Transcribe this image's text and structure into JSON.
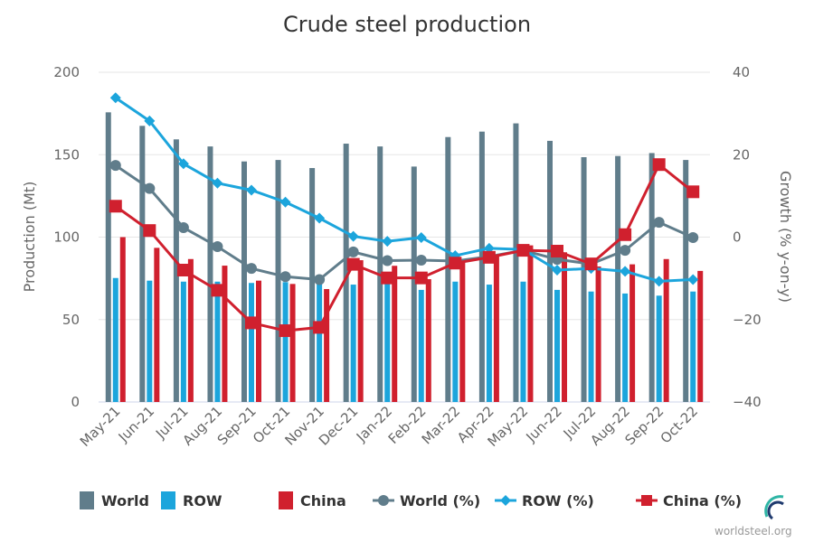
{
  "chart_data": {
    "type": "bar",
    "title": "Crude steel production",
    "xlabel": "",
    "ylabel": "Production (Mt)",
    "y2label": "Growth (% y-on-y)",
    "ylim": [
      0,
      200
    ],
    "y2lim": [
      -40,
      40
    ],
    "yticks": [
      "0",
      "50",
      "100",
      "150",
      "200"
    ],
    "y2ticks": [
      "−40",
      "−20",
      "0",
      "20",
      "40"
    ],
    "grid": true,
    "legend_position": "bottom",
    "categories": [
      "May-21",
      "Jun-21",
      "Jul-21",
      "Aug-21",
      "Sep-21",
      "Oct-21",
      "Nov-21",
      "Dec-21",
      "Jan-22",
      "Feb-22",
      "Mar-22",
      "Apr-22",
      "May-22",
      "Jun-22",
      "Jul-22",
      "Aug-22",
      "Sep-22",
      "Oct-22"
    ],
    "series": [
      {
        "name": "World",
        "type": "bar",
        "axis": "left",
        "color": "#607d8b",
        "values": [
          175.7,
          167.5,
          159.3,
          155.0,
          145.9,
          146.8,
          141.9,
          156.7,
          155.0,
          142.8,
          160.7,
          164.0,
          169.0,
          158.4,
          148.5,
          149.2,
          151.0,
          146.8
        ]
      },
      {
        "name": "ROW",
        "type": "bar",
        "axis": "left",
        "color": "#1ca5dc",
        "values": [
          75.2,
          73.6,
          73.0,
          73.0,
          72.2,
          72.7,
          74.0,
          71.2,
          72.6,
          68.0,
          73.0,
          71.2,
          73.0,
          68.0,
          67.0,
          65.8,
          64.5,
          67.0
        ]
      },
      {
        "name": "China",
        "type": "bar",
        "axis": "left",
        "color": "#d0202e",
        "values": [
          100.0,
          93.5,
          86.7,
          82.7,
          73.6,
          71.6,
          68.5,
          86.0,
          82.6,
          74.5,
          85.0,
          88.6,
          95.0,
          90.8,
          82.2,
          83.5,
          86.7,
          79.5
        ]
      },
      {
        "name": "World (%)",
        "type": "line",
        "axis": "right",
        "marker": "circle",
        "color": "#607d8b",
        "values": [
          17.4,
          11.8,
          2.3,
          -2.3,
          -7.6,
          -9.6,
          -10.3,
          -3.6,
          -5.7,
          -5.6,
          -5.8,
          -4.7,
          -3.2,
          -5.4,
          -6.5,
          -3.2,
          3.6,
          -0.1
        ]
      },
      {
        "name": "ROW (%)",
        "type": "line",
        "axis": "right",
        "marker": "diamond",
        "color": "#1ca5dc",
        "values": [
          33.8,
          28.2,
          17.8,
          13.1,
          11.4,
          8.5,
          4.6,
          0.2,
          -1.0,
          -0.1,
          -4.5,
          -2.7,
          -3.0,
          -8.0,
          -7.6,
          -8.3,
          -10.7,
          -10.3
        ]
      },
      {
        "name": "China (%)",
        "type": "line",
        "axis": "right",
        "marker": "square",
        "color": "#d0202e",
        "values": [
          7.5,
          1.6,
          -8.0,
          -12.9,
          -20.8,
          -22.7,
          -21.9,
          -6.6,
          -9.9,
          -9.9,
          -6.3,
          -4.9,
          -3.2,
          -3.4,
          -6.5,
          0.6,
          17.6,
          11.0
        ]
      }
    ]
  },
  "credit": "worldsteel.org"
}
